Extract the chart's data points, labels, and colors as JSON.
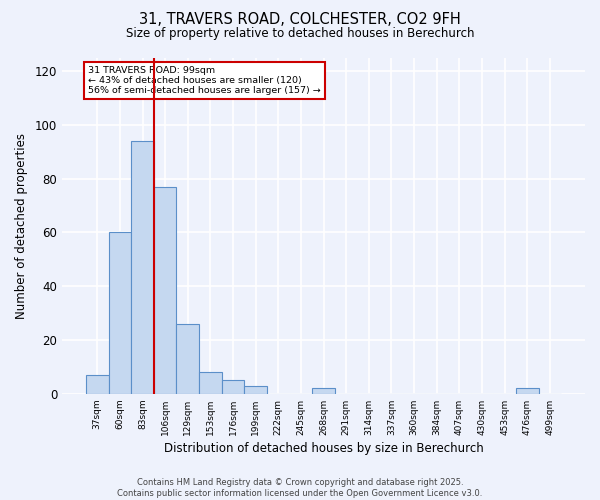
{
  "title_line1": "31, TRAVERS ROAD, COLCHESTER, CO2 9FH",
  "title_line2": "Size of property relative to detached houses in Berechurch",
  "xlabel": "Distribution of detached houses by size in Berechurch",
  "ylabel": "Number of detached properties",
  "categories": [
    "37sqm",
    "60sqm",
    "83sqm",
    "106sqm",
    "129sqm",
    "153sqm",
    "176sqm",
    "199sqm",
    "222sqm",
    "245sqm",
    "268sqm",
    "291sqm",
    "314sqm",
    "337sqm",
    "360sqm",
    "384sqm",
    "407sqm",
    "430sqm",
    "453sqm",
    "476sqm",
    "499sqm"
  ],
  "values": [
    7,
    60,
    94,
    77,
    26,
    8,
    5,
    3,
    0,
    0,
    2,
    0,
    0,
    0,
    0,
    0,
    0,
    0,
    0,
    2,
    0
  ],
  "bar_color": "#c5d8f0",
  "bar_edge_color": "#5b8fc9",
  "bar_linewidth": 0.8,
  "vline_color": "#cc0000",
  "vline_x": 2.5,
  "annotation_text": "31 TRAVERS ROAD: 99sqm\n← 43% of detached houses are smaller (120)\n56% of semi-detached houses are larger (157) →",
  "annotation_box_color": "#ffffff",
  "annotation_border_color": "#cc0000",
  "ylim": [
    0,
    125
  ],
  "yticks": [
    0,
    20,
    40,
    60,
    80,
    100,
    120
  ],
  "background_color": "#eef2fc",
  "grid_color": "#ffffff",
  "footer_line1": "Contains HM Land Registry data © Crown copyright and database right 2025.",
  "footer_line2": "Contains public sector information licensed under the Open Government Licence v3.0."
}
